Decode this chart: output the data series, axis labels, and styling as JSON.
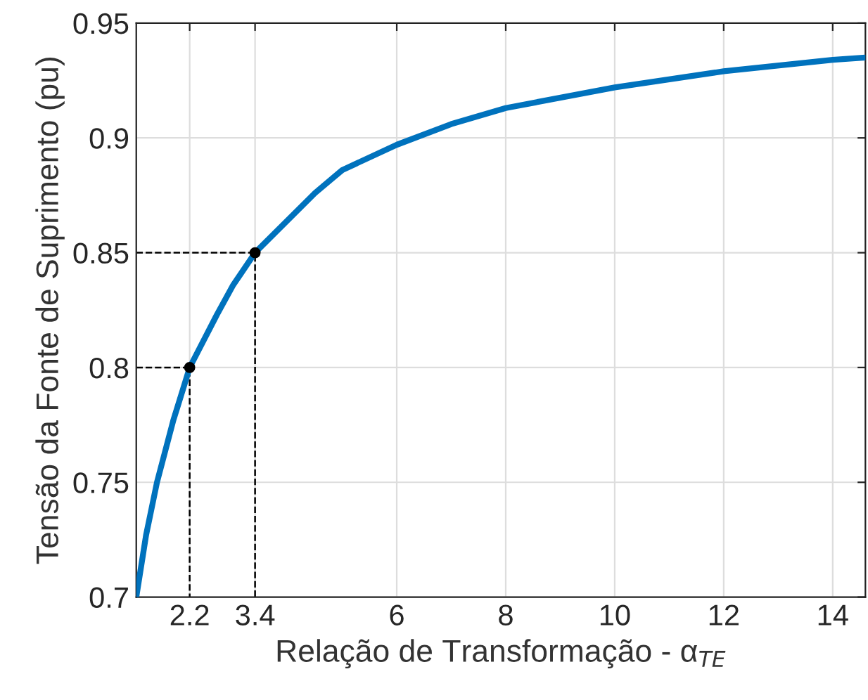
{
  "chart_data": {
    "type": "line",
    "xlabel": "Relação de Transformação - α$_{TE}$",
    "ylabel": "Tensão da Fonte de Suprimento (pu)",
    "series": [
      {
        "color": "#0072bd",
        "x": [
          1.22,
          1.4,
          1.6,
          1.9,
          2.2,
          2.7,
          3.0,
          3.4,
          4.5,
          5,
          6,
          7,
          8,
          10,
          12,
          14,
          14.6
        ],
        "values": [
          0.7,
          0.727,
          0.75,
          0.777,
          0.8,
          0.823,
          0.836,
          0.85,
          0.876,
          0.886,
          0.897,
          0.906,
          0.913,
          0.922,
          0.929,
          0.934,
          0.935
        ]
      },
      {
        "type": "line",
        "color": "#000000",
        "line_style": "dashed",
        "x": [
          1.22,
          2.2,
          2.2
        ],
        "values": [
          0.8,
          0.8,
          0.7
        ]
      },
      {
        "type": "line",
        "color": "#000000",
        "line_style": "dashed",
        "x": [
          1.22,
          3.4,
          3.4
        ],
        "values": [
          0.85,
          0.85,
          0.7
        ]
      },
      {
        "type": "scatter",
        "color": "#000000",
        "marker": "circle",
        "x": [
          2.2,
          3.4
        ],
        "values": [
          0.8,
          0.85
        ]
      }
    ],
    "xlim": [
      1.22,
      14.6
    ],
    "ylim": [
      0.7,
      0.95
    ],
    "xticks": [
      2.2,
      3.4,
      6,
      8,
      10,
      12,
      14
    ],
    "yticks": [
      0.7,
      0.75,
      0.8,
      0.85,
      0.9,
      0.95
    ],
    "grid": true
  }
}
